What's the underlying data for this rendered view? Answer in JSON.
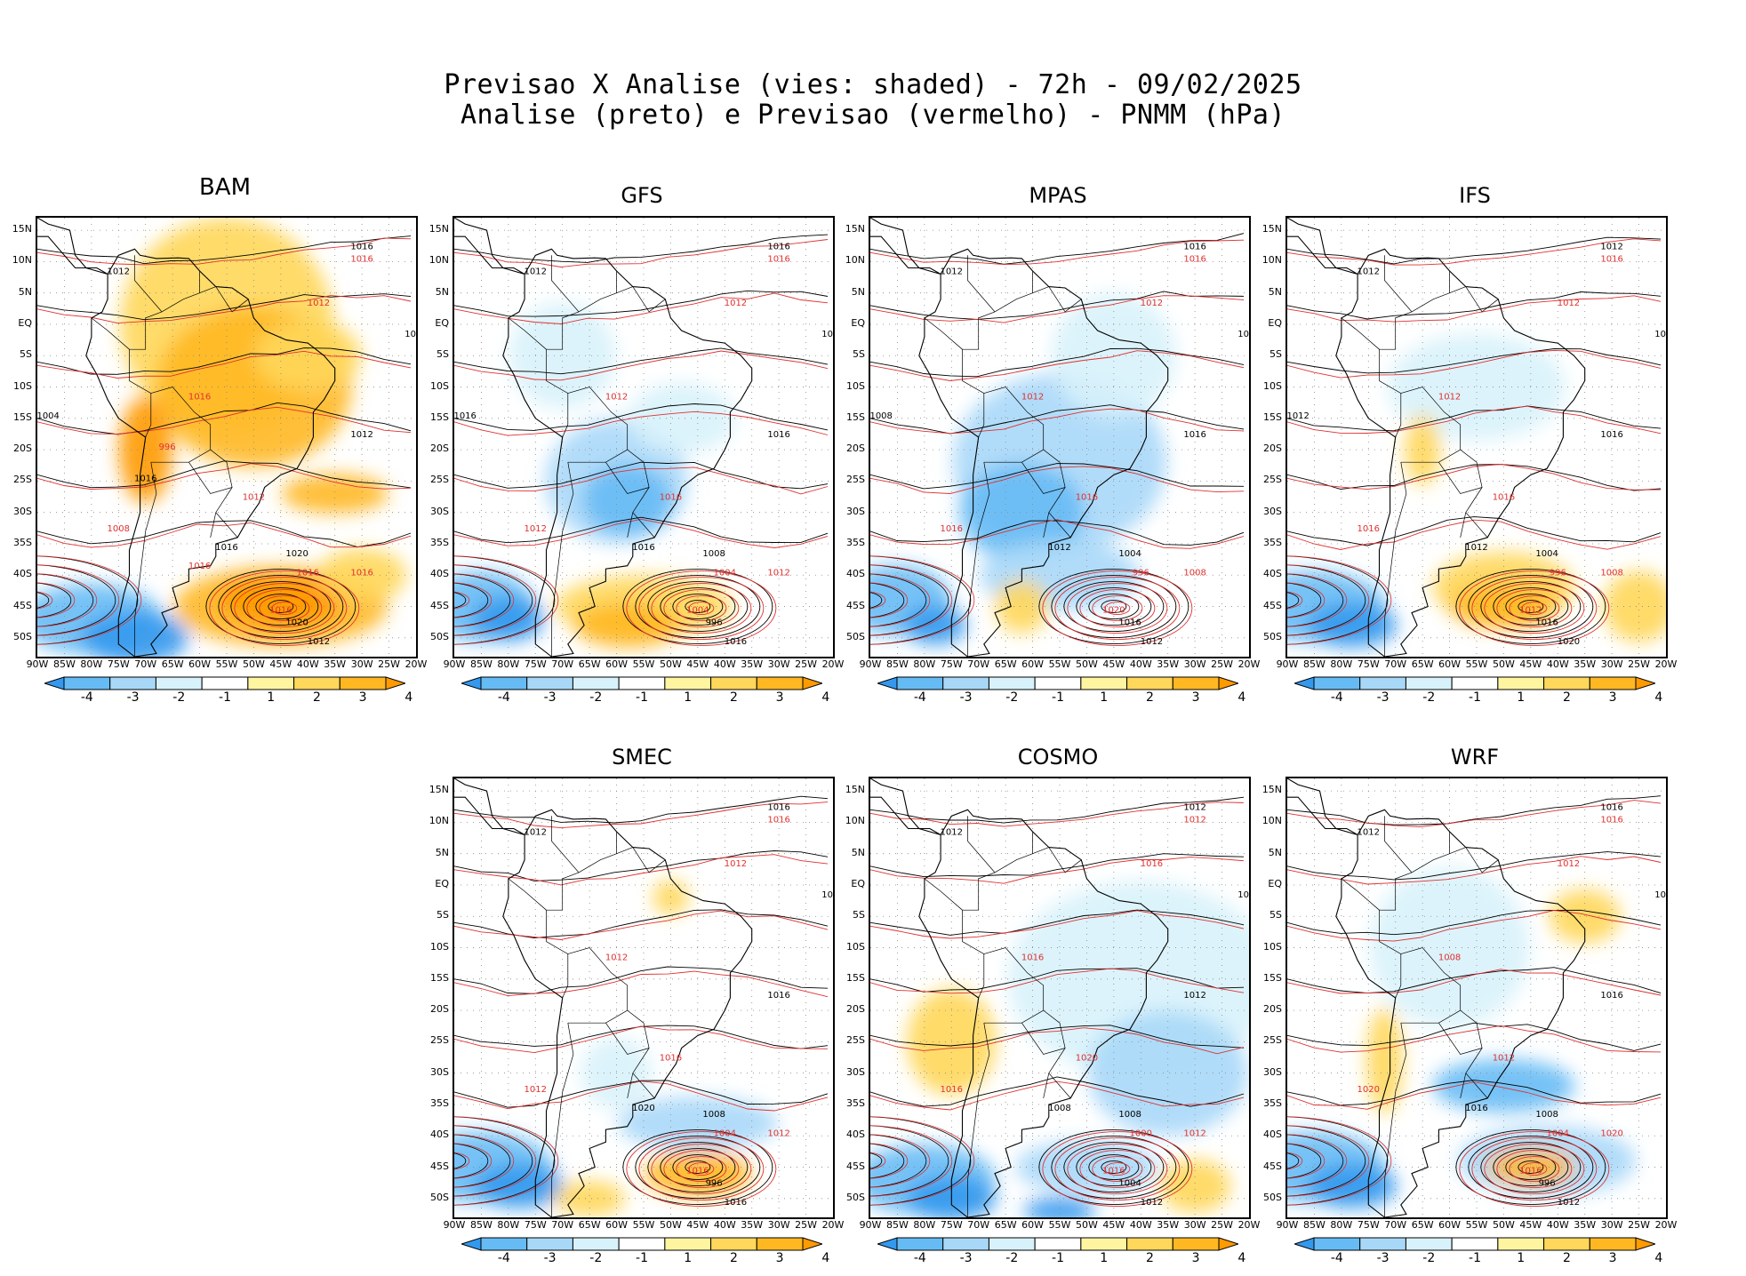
{
  "figure": {
    "title_line1": "Previsao X Analise (vies: shaded) - 72h - 09/02/2025",
    "title_line2": "Analise (preto) e Previsao (vermelho) - PNMM (hPa)"
  },
  "lat_labels": [
    "15N",
    "10N",
    "5N",
    "EQ",
    "5S",
    "10S",
    "15S",
    "20S",
    "25S",
    "30S",
    "35S",
    "40S",
    "45S",
    "50S"
  ],
  "lon_labels": [
    "90W",
    "85W",
    "80W",
    "75W",
    "70W",
    "65W",
    "60W",
    "55W",
    "50W",
    "45W",
    "40W",
    "35W",
    "30W",
    "25W",
    "20W"
  ],
  "colorbar": {
    "labels": [
      "-4",
      "-3",
      "-2",
      "-1",
      "1",
      "2",
      "3",
      "4"
    ],
    "colors": [
      "#3399ee",
      "#66bbf5",
      "#a8d8f8",
      "#d8f2fb",
      "#ffffff",
      "#fff5a0",
      "#ffd75a",
      "#ffb822",
      "#ff9a00"
    ]
  },
  "colors": {
    "analysis": "#000000",
    "forecast": "#e03030"
  },
  "panels": [
    {
      "name": "BAM",
      "labels": [
        "1016",
        "1016",
        "1012",
        "1012",
        "1012",
        "1016",
        "1012",
        "1012",
        "1016",
        "1016",
        "1020",
        "1016",
        "1020",
        "1016",
        "1012",
        "1008",
        "1004",
        "996",
        "1016",
        "1016"
      ]
    },
    {
      "name": "GFS",
      "labels": [
        "1016",
        "1016",
        "1012",
        "1012",
        "1012",
        "1012",
        "1016",
        "1016",
        "1016",
        "1012",
        "1008",
        "1004",
        "996",
        "1004",
        "1016",
        "1012",
        "1016"
      ]
    },
    {
      "name": "MPAS",
      "labels": [
        "1016",
        "1016",
        "1012",
        "1012",
        "1012",
        "1012",
        "1016",
        "1016",
        "1012",
        "1008",
        "1004",
        "996",
        "1016",
        "1020",
        "1012",
        "1016",
        "1008"
      ]
    },
    {
      "name": "IFS",
      "labels": [
        "1012",
        "1016",
        "1012",
        "1012",
        "1008",
        "1012",
        "1016",
        "1016",
        "1012",
        "1008",
        "1004",
        "996",
        "1016",
        "1012",
        "1020",
        "1016",
        "1012"
      ]
    },
    {
      "name": "SMEC",
      "labels": [
        "1016",
        "1016",
        "1012",
        "1012",
        "1012",
        "1012",
        "1016",
        "1016",
        "1020",
        "1012",
        "1008",
        "1004",
        "996",
        "1016",
        "1016",
        "1012"
      ]
    },
    {
      "name": "COSMO",
      "labels": [
        "1012",
        "1012",
        "1012",
        "1016",
        "1016",
        "1016",
        "1012",
        "1020",
        "1008",
        "1012",
        "1008",
        "1000",
        "1004",
        "1016",
        "1012",
        "1016"
      ]
    },
    {
      "name": "WRF",
      "labels": [
        "1016",
        "1016",
        "1012",
        "1012",
        "1012",
        "1008",
        "1016",
        "1012",
        "1016",
        "1020",
        "1008",
        "1004",
        "996",
        "1016",
        "1012",
        "1020"
      ]
    }
  ]
}
